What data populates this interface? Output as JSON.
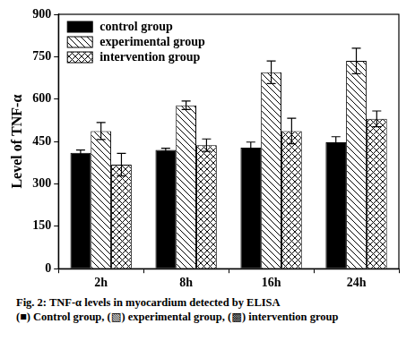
{
  "chart_data": {
    "type": "bar",
    "y_label": "Level of TNF-α",
    "categories": [
      "2h",
      "8h",
      "16h",
      "24h"
    ],
    "series": [
      {
        "name": "control group",
        "color": "#000000",
        "values": [
          410,
          420,
          428,
          447
        ],
        "errors": [
          10,
          6,
          20,
          20
        ]
      },
      {
        "name": "experimental group",
        "color": "#000000",
        "values": [
          487,
          578,
          695,
          735
        ],
        "errors": [
          30,
          15,
          40,
          45
        ]
      },
      {
        "name": "intervention group",
        "color": "#000000",
        "values": [
          368,
          437,
          487,
          530
        ],
        "errors": [
          40,
          22,
          45,
          28
        ]
      }
    ],
    "ylim": [
      0,
      900
    ],
    "yticks": [
      0,
      150,
      300,
      450,
      600,
      750,
      900
    ],
    "grid": false,
    "legend": "upper left",
    "caption": [
      "Fig. 2: TNF-α levels in myocardium detected by ELISA",
      "(■) Control group, (▧) experimental group, (▩) intervention group"
    ]
  }
}
